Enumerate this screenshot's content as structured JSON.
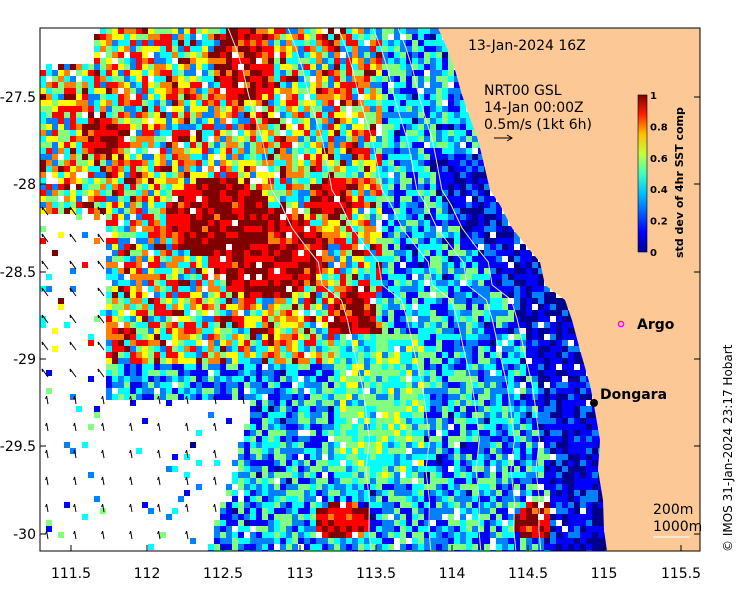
{
  "map": {
    "timestamp": "13-Jan-2024 16Z",
    "current_product": "NRT00 GSL",
    "current_time": "14-Jan 00:00Z",
    "current_scale": "0.5m/s (1kt 6h)",
    "x_ticks": [
      "111.5",
      "112",
      "112.5",
      "113",
      "113.5",
      "114",
      "114.5",
      "115",
      "115.5"
    ],
    "y_ticks": [
      "-27.5",
      "-28",
      "-28.5",
      "-29",
      "-29.5",
      "-30"
    ],
    "colorbar": {
      "label": "std dev of 4hr SST comp",
      "ticks": [
        "0",
        "0.2",
        "0.4",
        "0.6",
        "0.8",
        "1"
      ],
      "colors": [
        "#00008f",
        "#0000ff",
        "#0080ff",
        "#00ffff",
        "#80ff80",
        "#ffff00",
        "#ff8000",
        "#ff0000",
        "#800000"
      ]
    },
    "places": {
      "argo": "Argo",
      "dongara": "Dongara"
    },
    "isobaths": [
      "200m",
      "1000m"
    ],
    "credit": "© IMOS 31-Jan-2024 23:17 Hobart",
    "land_color": "#fcc896",
    "argo_color": "#ff00ff"
  }
}
